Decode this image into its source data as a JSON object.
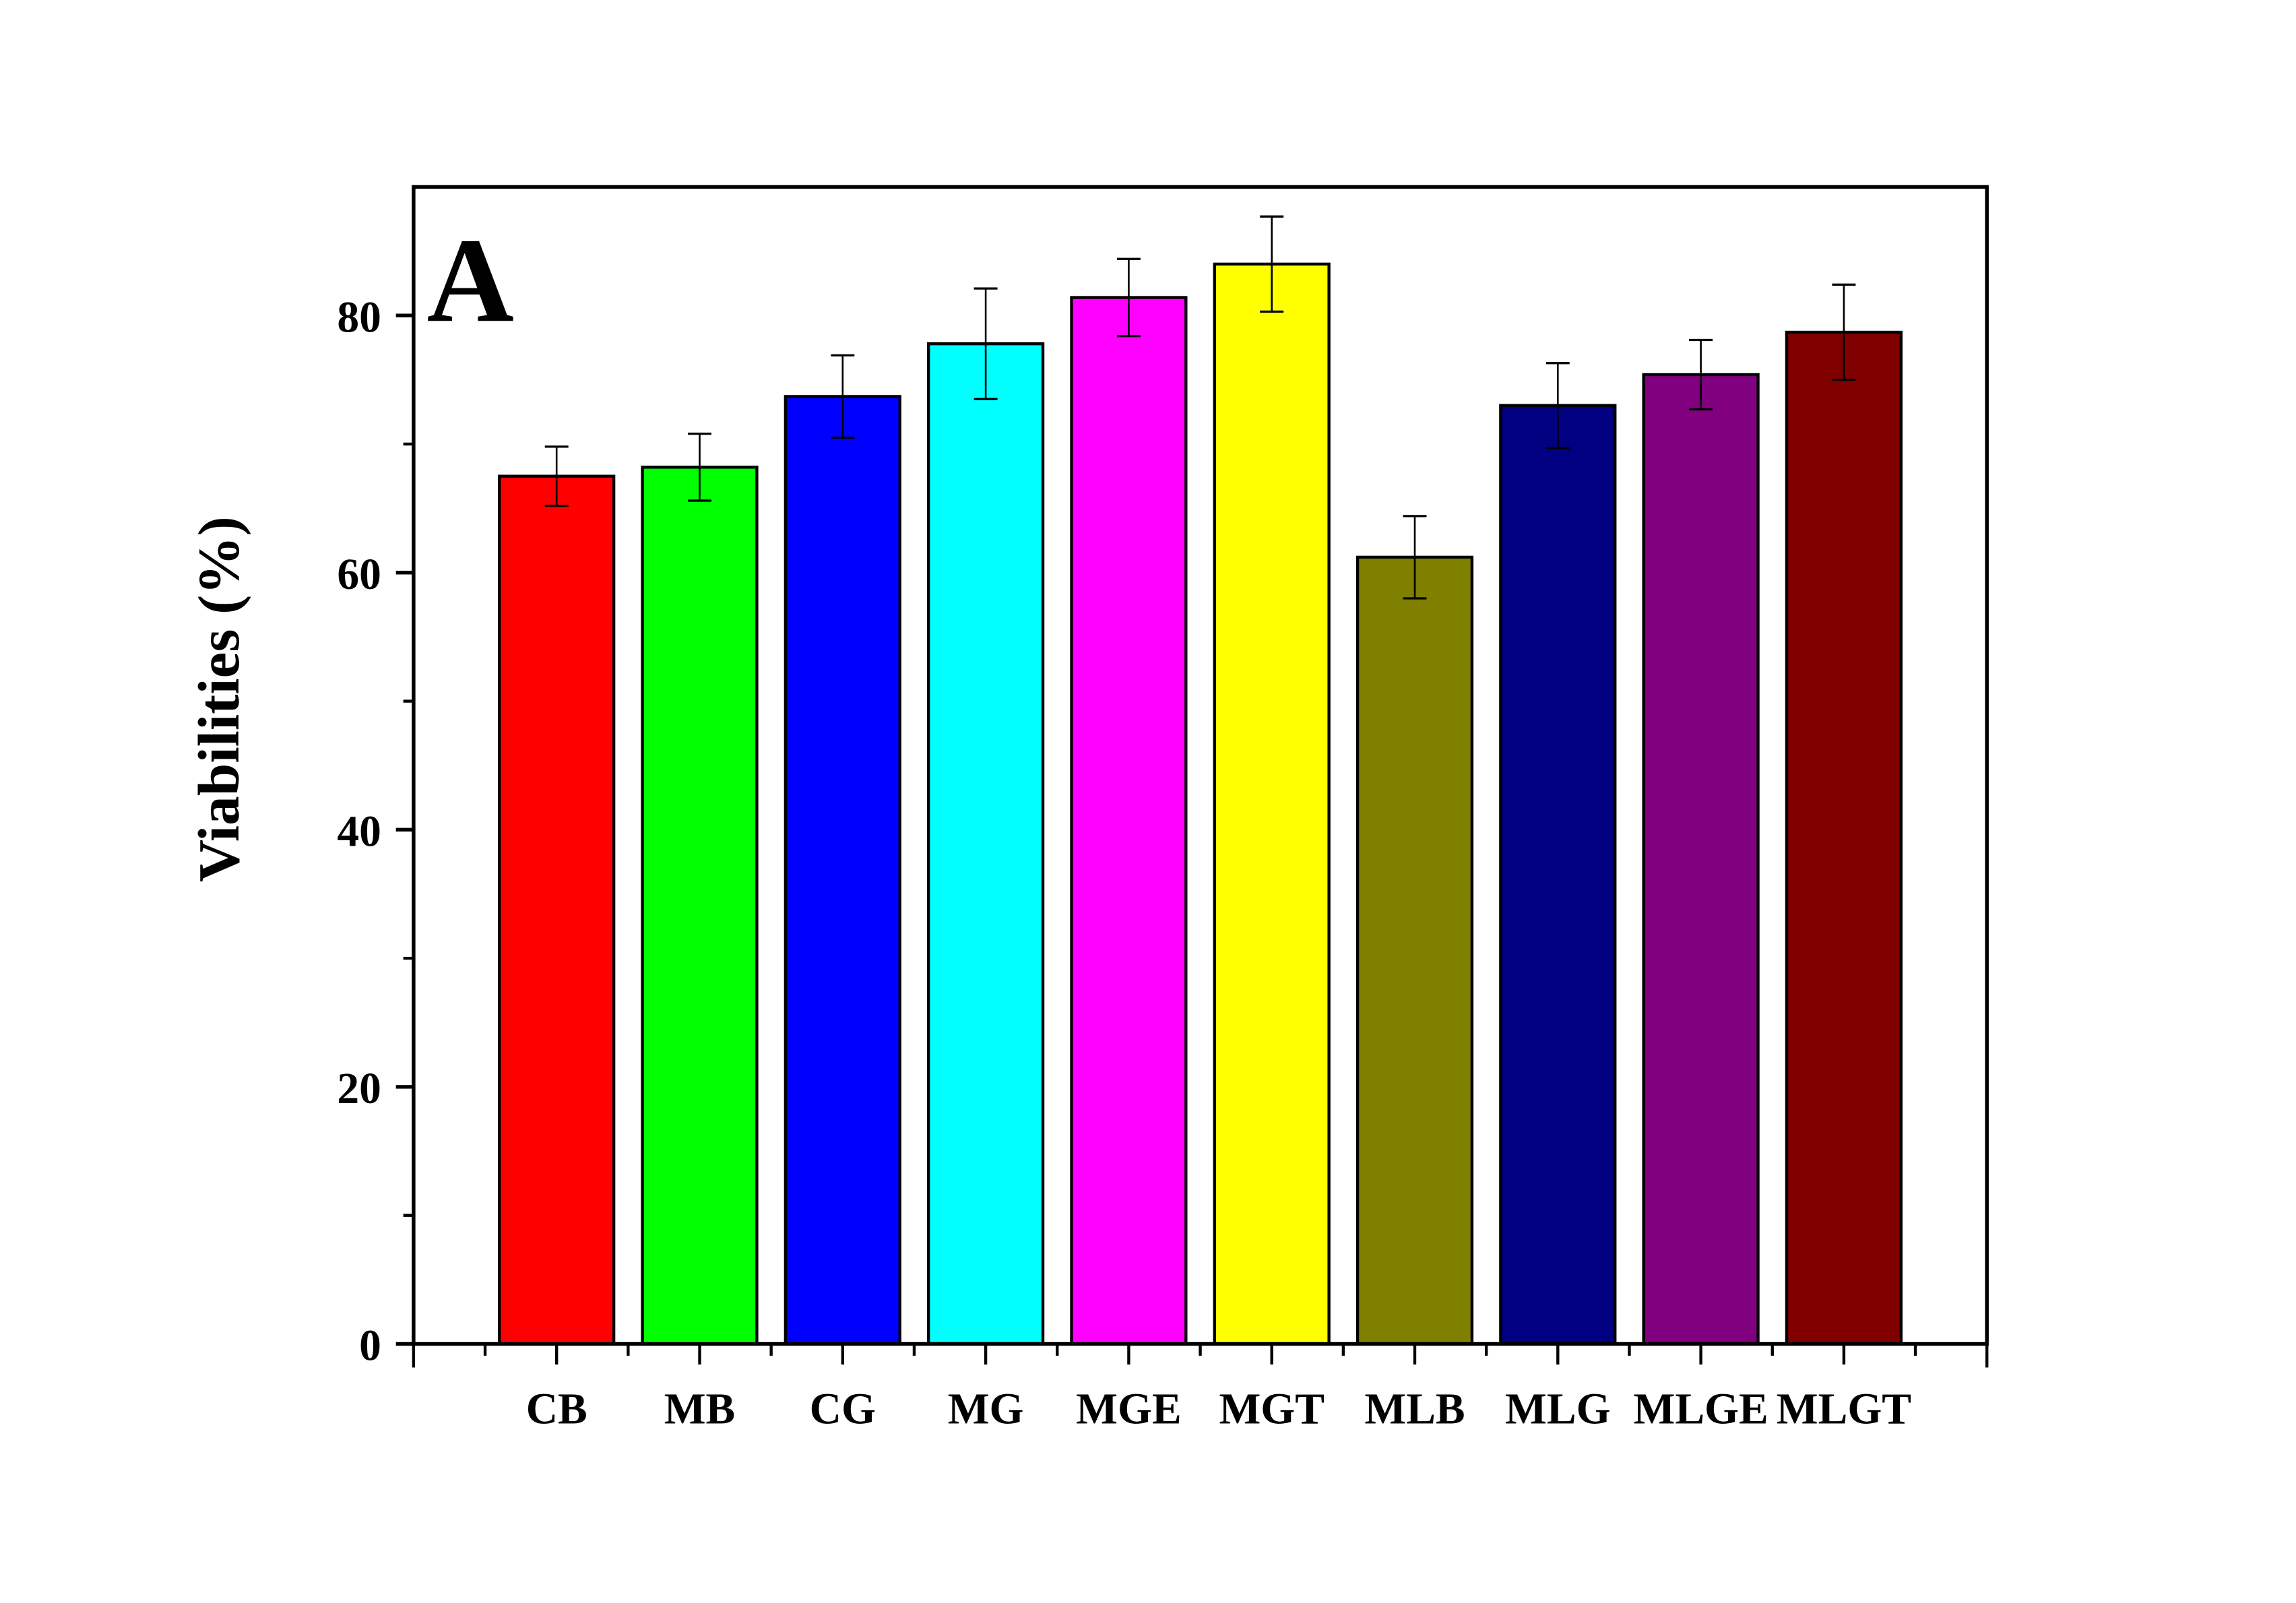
{
  "chart_data": {
    "type": "bar",
    "title": "",
    "panel_label": "A",
    "xlabel": "",
    "ylabel": "Viabilities (%)",
    "ylim": [
      0,
      90
    ],
    "yticks": [
      0,
      20,
      40,
      60,
      80
    ],
    "yticklabels": [
      "0",
      "20",
      "40",
      "60",
      "80"
    ],
    "grid": false,
    "categories": [
      "CB",
      "MB",
      "CG",
      "MG",
      "MGE",
      "MGT",
      "MLB",
      "MLG",
      "MLGE",
      "MLGT"
    ],
    "values": [
      67.5,
      68.2,
      73.7,
      77.8,
      81.4,
      84.0,
      61.2,
      73.0,
      75.4,
      78.7
    ],
    "errors": [
      2.3,
      2.6,
      3.2,
      4.3,
      3.0,
      3.7,
      3.2,
      3.3,
      2.7,
      3.7
    ],
    "colors": [
      "#ff0000",
      "#00ff00",
      "#0000ff",
      "#00ffff",
      "#ff00ff",
      "#ffff00",
      "#808000",
      "#000080",
      "#800080",
      "#800000"
    ]
  }
}
